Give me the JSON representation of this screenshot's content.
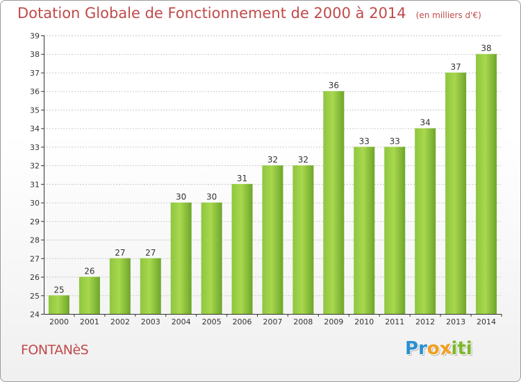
{
  "header": {
    "title": "Dotation Globale de Fonctionnement de 2000 à 2014",
    "subtitle": "(en milliers d'€)"
  },
  "footer": {
    "commune": "FONTANèS",
    "logo": {
      "text": "Proxiti",
      "letters": [
        {
          "ch": "P",
          "color": "#2a8fd0"
        },
        {
          "ch": "r",
          "color": "#2a8fd0"
        },
        {
          "ch": "o",
          "color": "#f0a020"
        },
        {
          "ch": "x",
          "color": "#f0a020"
        },
        {
          "ch": "i",
          "color": "#7cb829"
        },
        {
          "ch": "t",
          "color": "#7cb829"
        },
        {
          "ch": "i",
          "color": "#7cb829"
        }
      ]
    }
  },
  "colors": {
    "title": "#c04a4a",
    "bar_light": "#a8d84e",
    "bar_dark": "#6ea52a",
    "grid": "#c8c8c8",
    "axis": "#333333"
  },
  "chart_data": {
    "type": "bar",
    "title": "Dotation Globale de Fonctionnement de 2000 à 2014",
    "subtitle": "(en milliers d'€)",
    "categories": [
      "2000",
      "2001",
      "2002",
      "2003",
      "2004",
      "2005",
      "2006",
      "2007",
      "2008",
      "2009",
      "2010",
      "2011",
      "2012",
      "2013",
      "2014"
    ],
    "values": [
      25,
      26,
      27,
      27,
      30,
      30,
      31,
      32,
      32,
      36,
      33,
      33,
      34,
      37,
      38
    ],
    "ylim": [
      24,
      39
    ],
    "yticks": [
      24,
      25,
      26,
      27,
      28,
      29,
      30,
      31,
      32,
      33,
      34,
      35,
      36,
      37,
      38,
      39
    ],
    "grid": true,
    "data_labels": true
  }
}
